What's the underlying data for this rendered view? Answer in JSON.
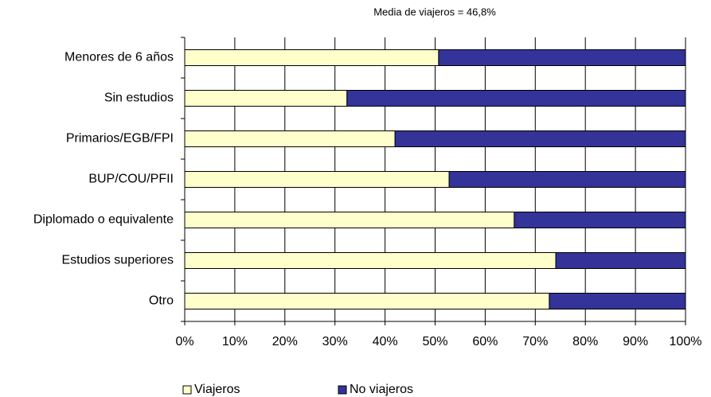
{
  "chart_data": {
    "type": "stacked-barh",
    "title": "Media de viajeros = 46,8%",
    "categories": [
      "Menores de 6 años",
      "Sin estudios",
      "Primarios/EGB/FPI",
      "BUP/COU/PFII",
      "Diplomado o equivalente",
      "Estudios superiores",
      "Otro"
    ],
    "series": [
      {
        "name": "Viajeros",
        "color": "#ffffcc",
        "values": [
          50.7,
          32.4,
          42.0,
          52.8,
          65.8,
          74.1,
          72.8
        ]
      },
      {
        "name": "No viajeros",
        "color": "#333399",
        "values": [
          49.3,
          67.6,
          58.0,
          47.2,
          34.2,
          25.9,
          27.2
        ]
      }
    ],
    "xlim": [
      0,
      100
    ],
    "xticks": [
      {
        "value": 0,
        "label": "0%"
      },
      {
        "value": 10,
        "label": "10%"
      },
      {
        "value": 20,
        "label": "20%"
      },
      {
        "value": 30,
        "label": "30%"
      },
      {
        "value": 40,
        "label": "40%"
      },
      {
        "value": 50,
        "label": "50%"
      },
      {
        "value": 60,
        "label": "60%"
      },
      {
        "value": 70,
        "label": "70%"
      },
      {
        "value": 80,
        "label": "80%"
      },
      {
        "value": 90,
        "label": "90%"
      },
      {
        "value": 100,
        "label": "100%"
      }
    ],
    "grid": true,
    "legend": "bottom"
  }
}
